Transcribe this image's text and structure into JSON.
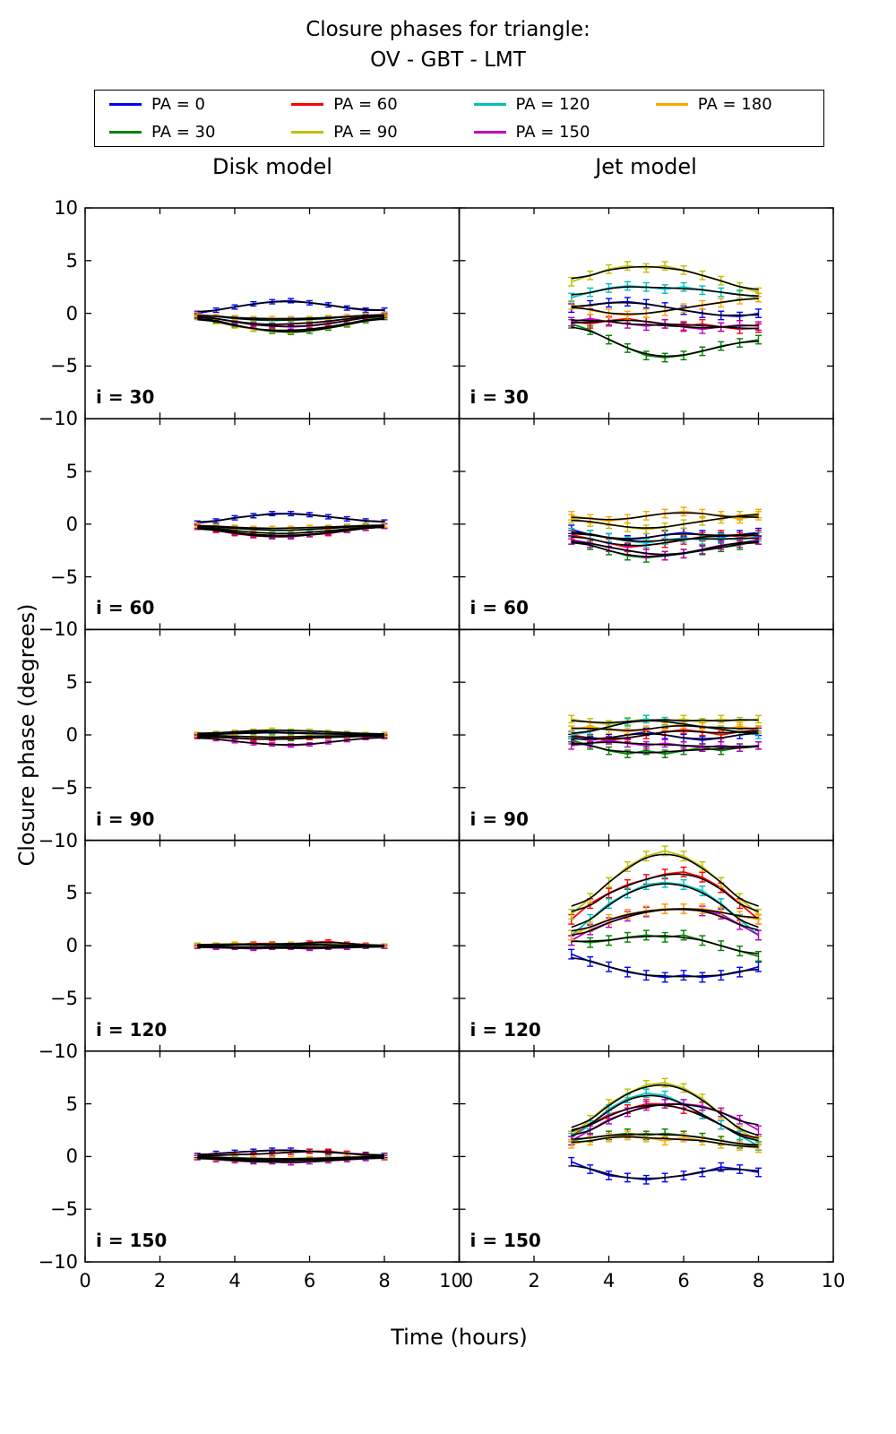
{
  "title": {
    "line1": "Closure phases for triangle:",
    "line2": "OV - GBT - LMT"
  },
  "axis": {
    "xlabel": "Time (hours)",
    "ylabel": "Closure phase (degrees)"
  },
  "chart_data": {
    "type": "line",
    "columns": [
      "Disk model",
      "Jet model"
    ],
    "legend": [
      {
        "label": "PA = 0",
        "color": "#0000ff"
      },
      {
        "label": "PA = 30",
        "color": "#008000"
      },
      {
        "label": "PA = 60",
        "color": "#ff0000"
      },
      {
        "label": "PA = 90",
        "color": "#bfbf00"
      },
      {
        "label": "PA = 120",
        "color": "#00bfbf"
      },
      {
        "label": "PA = 150",
        "color": "#bf00bf"
      },
      {
        "label": "PA = 180",
        "color": "#ffa500"
      }
    ],
    "x": [
      3,
      3.5,
      4,
      4.5,
      5,
      5.5,
      6,
      6.5,
      7,
      7.5,
      8
    ],
    "xlim": [
      0,
      10
    ],
    "ylim": [
      -10,
      10
    ],
    "xticks": [
      0,
      2,
      4,
      6,
      8,
      10
    ],
    "yticks": [
      -10,
      -5,
      0,
      5,
      10
    ],
    "rows": [
      {
        "label": "i = 30",
        "err": {
          "disk": 0.2,
          "jet": 0.4
        },
        "disk": {
          "PA = 0": [
            0.0,
            0.3,
            0.6,
            0.9,
            1.1,
            1.2,
            1.0,
            0.8,
            0.5,
            0.3,
            0.3
          ],
          "PA = 30": [
            -0.3,
            -0.7,
            -1.1,
            -1.5,
            -1.7,
            -1.8,
            -1.7,
            -1.4,
            -1.1,
            -0.7,
            -0.4
          ],
          "PA = 60": [
            -0.2,
            -0.5,
            -0.8,
            -1.0,
            -1.1,
            -1.0,
            -0.9,
            -0.8,
            -0.5,
            -0.3,
            -0.2
          ],
          "PA = 90": [
            -0.4,
            -0.8,
            -1.2,
            -1.5,
            -1.6,
            -1.7,
            -1.5,
            -1.3,
            -1.0,
            -0.6,
            -0.3
          ],
          "PA = 120": [
            -0.1,
            -0.3,
            -0.5,
            -0.6,
            -0.7,
            -0.6,
            -0.6,
            -0.5,
            -0.3,
            -0.2,
            -0.1
          ],
          "PA = 150": [
            -0.2,
            -0.5,
            -0.8,
            -1.1,
            -1.2,
            -1.3,
            -1.2,
            -1.0,
            -0.7,
            -0.4,
            -0.2
          ],
          "PA = 180": [
            -0.1,
            -0.3,
            -0.4,
            -0.5,
            -0.5,
            -0.5,
            -0.5,
            -0.4,
            -0.3,
            -0.2,
            -0.1
          ]
        },
        "jet": {
          "PA = 0": [
            0.5,
            0.8,
            1.0,
            1.1,
            0.9,
            0.6,
            0.3,
            0.0,
            -0.2,
            -0.3,
            0.0
          ],
          "PA = 30": [
            -1.0,
            -1.6,
            -2.5,
            -3.3,
            -4.0,
            -4.2,
            -4.0,
            -3.6,
            -3.1,
            -2.8,
            -2.5
          ],
          "PA = 60": [
            -0.8,
            -1.0,
            -0.7,
            -0.5,
            -0.8,
            -1.0,
            -1.2,
            -1.0,
            -1.3,
            -1.5,
            -1.4
          ],
          "PA = 90": [
            3.0,
            3.6,
            4.2,
            4.5,
            4.3,
            4.5,
            4.1,
            3.6,
            3.1,
            2.5,
            2.0
          ],
          "PA = 120": [
            1.5,
            2.0,
            2.4,
            2.6,
            2.5,
            2.3,
            2.5,
            2.2,
            2.0,
            1.8,
            1.5
          ],
          "PA = 150": [
            -0.8,
            -0.5,
            -0.8,
            -1.0,
            -1.2,
            -1.0,
            -1.3,
            -1.5,
            -1.3,
            -1.1,
            -1.2
          ],
          "PA = 180": [
            0.8,
            0.3,
            0.0,
            -0.2,
            0.0,
            0.2,
            0.5,
            0.8,
            1.0,
            1.3,
            1.5
          ]
        }
      },
      {
        "label": "i = 60",
        "err": {
          "disk": 0.2,
          "jet": 0.4
        },
        "disk": {
          "PA = 0": [
            0.1,
            0.3,
            0.6,
            0.8,
            1.0,
            1.0,
            0.9,
            0.7,
            0.5,
            0.3,
            0.2
          ],
          "PA = 30": [
            -0.2,
            -0.5,
            -0.8,
            -1.0,
            -1.1,
            -1.1,
            -1.0,
            -0.8,
            -0.6,
            -0.4,
            -0.2
          ],
          "PA = 60": [
            -0.3,
            -0.6,
            -0.9,
            -1.1,
            -1.2,
            -1.2,
            -1.0,
            -0.9,
            -0.6,
            -0.4,
            -0.2
          ],
          "PA = 90": [
            -0.2,
            -0.4,
            -0.6,
            -0.8,
            -0.9,
            -0.9,
            -0.8,
            -0.6,
            -0.5,
            -0.3,
            -0.2
          ],
          "PA = 120": [
            -0.1,
            -0.3,
            -0.4,
            -0.5,
            -0.6,
            -0.6,
            -0.5,
            -0.4,
            -0.3,
            -0.2,
            -0.1
          ],
          "PA = 150": [
            -0.2,
            -0.5,
            -0.8,
            -1.0,
            -1.2,
            -1.2,
            -1.0,
            -0.8,
            -0.6,
            -0.4,
            -0.2
          ],
          "PA = 180": [
            -0.1,
            -0.2,
            -0.3,
            -0.4,
            -0.4,
            -0.4,
            -0.3,
            -0.3,
            -0.2,
            -0.1,
            -0.1
          ]
        },
        "jet": {
          "PA = 0": [
            -0.5,
            -1.0,
            -1.3,
            -1.5,
            -1.3,
            -1.0,
            -0.8,
            -1.0,
            -1.2,
            -1.0,
            -0.8
          ],
          "PA = 30": [
            -1.5,
            -2.0,
            -2.5,
            -3.0,
            -3.2,
            -3.0,
            -2.8,
            -2.5,
            -2.2,
            -2.0,
            -1.5
          ],
          "PA = 60": [
            -1.0,
            -1.4,
            -1.8,
            -2.2,
            -2.0,
            -1.8,
            -1.5,
            -1.2,
            -1.0,
            -1.2,
            -1.0
          ],
          "PA = 90": [
            0.5,
            0.2,
            0.0,
            -0.3,
            -0.5,
            -0.3,
            0.0,
            0.3,
            0.5,
            0.8,
            1.0
          ],
          "PA = 120": [
            -0.8,
            -1.0,
            -1.3,
            -1.6,
            -1.8,
            -1.5,
            -1.3,
            -1.5,
            -1.3,
            -1.5,
            -1.2
          ],
          "PA = 150": [
            -1.5,
            -1.8,
            -2.2,
            -2.5,
            -2.8,
            -3.0,
            -2.8,
            -2.4,
            -2.0,
            -1.8,
            -1.5
          ],
          "PA = 180": [
            0.8,
            0.5,
            0.3,
            0.5,
            0.8,
            1.0,
            1.2,
            1.0,
            0.8,
            0.5,
            0.8
          ]
        }
      },
      {
        "label": "i = 90",
        "err": {
          "disk": 0.15,
          "jet": 0.35
        },
        "disk": {
          "PA = 0": [
            0.0,
            0.1,
            0.2,
            0.3,
            0.3,
            0.2,
            0.2,
            0.1,
            0.1,
            0.0,
            0.0
          ],
          "PA = 30": [
            -0.1,
            -0.2,
            -0.3,
            -0.4,
            -0.4,
            -0.4,
            -0.3,
            -0.2,
            -0.2,
            -0.1,
            -0.1
          ],
          "PA = 60": [
            -0.1,
            -0.2,
            -0.3,
            -0.4,
            -0.4,
            -0.3,
            -0.3,
            -0.2,
            -0.1,
            -0.1,
            0.0
          ],
          "PA = 90": [
            0.1,
            0.2,
            0.3,
            0.4,
            0.5,
            0.4,
            0.4,
            0.3,
            0.2,
            0.1,
            0.1
          ],
          "PA = 120": [
            0.0,
            0.1,
            0.1,
            0.2,
            0.2,
            0.2,
            0.1,
            0.1,
            0.1,
            0.0,
            0.0
          ],
          "PA = 150": [
            -0.2,
            -0.4,
            -0.6,
            -0.8,
            -0.9,
            -1.0,
            -0.9,
            -0.7,
            -0.5,
            -0.3,
            -0.2
          ],
          "PA = 180": [
            0.0,
            -0.1,
            -0.1,
            -0.2,
            -0.2,
            -0.2,
            -0.1,
            -0.1,
            -0.1,
            0.0,
            0.0
          ]
        },
        "jet": {
          "PA = 0": [
            -0.3,
            -0.5,
            -0.3,
            0.0,
            0.3,
            0.0,
            -0.3,
            -0.5,
            -0.3,
            0.0,
            0.3
          ],
          "PA = 30": [
            -0.5,
            -1.0,
            -1.5,
            -1.8,
            -1.5,
            -1.8,
            -1.5,
            -1.2,
            -1.5,
            -1.2,
            -1.0
          ],
          "PA = 60": [
            0.0,
            -0.3,
            -0.5,
            -0.3,
            0.0,
            0.3,
            0.5,
            0.3,
            0.0,
            0.3,
            0.5
          ],
          "PA = 90": [
            1.5,
            1.2,
            1.0,
            1.3,
            1.5,
            1.3,
            1.5,
            1.2,
            1.5,
            1.3,
            1.5
          ],
          "PA = 120": [
            0.0,
            0.3,
            0.8,
            1.2,
            1.5,
            1.3,
            1.0,
            0.8,
            0.5,
            0.3,
            0.0
          ],
          "PA = 150": [
            -1.0,
            -0.8,
            -0.5,
            -0.8,
            -1.0,
            -0.8,
            -1.0,
            -1.2,
            -1.0,
            -1.2,
            -1.0
          ],
          "PA = 180": [
            0.5,
            0.8,
            0.5,
            0.3,
            0.5,
            0.8,
            1.0,
            0.8,
            0.5,
            0.8,
            0.5
          ]
        }
      },
      {
        "label": "i = 120",
        "err": {
          "disk": 0.15,
          "jet": 0.45
        },
        "disk": {
          "PA = 0": [
            0.0,
            0.1,
            0.1,
            0.1,
            0.0,
            0.0,
            0.1,
            0.1,
            0.0,
            0.0,
            0.0
          ],
          "PA = 30": [
            -0.1,
            -0.1,
            -0.2,
            -0.2,
            -0.2,
            -0.1,
            -0.1,
            -0.2,
            -0.1,
            -0.1,
            0.0
          ],
          "PA = 60": [
            0.0,
            0.1,
            0.1,
            0.2,
            0.2,
            0.1,
            0.3,
            0.4,
            0.2,
            0.1,
            0.0
          ],
          "PA = 90": [
            0.1,
            0.1,
            0.2,
            0.1,
            0.1,
            0.2,
            0.1,
            0.1,
            0.1,
            0.0,
            0.0
          ],
          "PA = 120": [
            0.0,
            -0.1,
            -0.1,
            -0.2,
            -0.1,
            -0.1,
            -0.2,
            -0.1,
            -0.1,
            0.0,
            -0.1
          ],
          "PA = 150": [
            -0.1,
            -0.2,
            -0.2,
            -0.3,
            -0.2,
            -0.2,
            -0.3,
            -0.2,
            -0.2,
            -0.1,
            -0.1
          ],
          "PA = 180": [
            0.0,
            0.0,
            0.1,
            0.1,
            0.0,
            0.1,
            0.0,
            0.1,
            0.0,
            0.0,
            0.0
          ]
        },
        "jet": {
          "PA = 0": [
            -0.8,
            -1.5,
            -2.0,
            -2.5,
            -2.8,
            -3.0,
            -2.8,
            -3.0,
            -2.8,
            -2.5,
            -2.0
          ],
          "PA = 30": [
            0.5,
            0.3,
            0.5,
            0.8,
            1.0,
            0.8,
            1.0,
            0.5,
            0.0,
            -0.5,
            -1.0
          ],
          "PA = 60": [
            2.5,
            4.0,
            5.0,
            5.8,
            6.3,
            6.8,
            7.0,
            6.5,
            5.5,
            4.0,
            2.5
          ],
          "PA = 90": [
            3.0,
            4.5,
            6.0,
            7.5,
            8.5,
            9.0,
            8.5,
            7.5,
            6.0,
            4.5,
            3.0
          ],
          "PA = 120": [
            1.0,
            2.5,
            4.0,
            5.0,
            5.8,
            6.0,
            5.8,
            5.2,
            4.0,
            2.5,
            1.0
          ],
          "PA = 150": [
            0.5,
            1.5,
            2.2,
            2.8,
            3.2,
            3.5,
            3.5,
            3.3,
            3.0,
            2.0,
            1.0
          ],
          "PA = 180": [
            1.0,
            1.8,
            2.5,
            3.0,
            3.3,
            3.5,
            3.5,
            3.5,
            3.2,
            2.8,
            2.5
          ]
        }
      },
      {
        "label": "i = 150",
        "err": {
          "disk": 0.2,
          "jet": 0.4
        },
        "disk": {
          "PA = 0": [
            0.1,
            0.3,
            0.4,
            0.5,
            0.6,
            0.6,
            0.5,
            0.4,
            0.3,
            0.2,
            0.1
          ],
          "PA = 30": [
            -0.1,
            -0.2,
            -0.3,
            -0.4,
            -0.4,
            -0.4,
            -0.3,
            -0.3,
            -0.2,
            -0.1,
            -0.1
          ],
          "PA = 60": [
            0.0,
            0.1,
            0.2,
            0.2,
            0.3,
            0.4,
            0.5,
            0.5,
            0.3,
            0.1,
            0.0
          ],
          "PA = 90": [
            -0.1,
            -0.2,
            -0.3,
            -0.3,
            -0.4,
            -0.4,
            -0.3,
            -0.3,
            -0.2,
            -0.1,
            -0.1
          ],
          "PA = 120": [
            -0.1,
            -0.1,
            -0.2,
            -0.2,
            -0.3,
            -0.2,
            -0.2,
            -0.2,
            -0.1,
            -0.1,
            0.0
          ],
          "PA = 150": [
            -0.1,
            -0.3,
            -0.4,
            -0.5,
            -0.5,
            -0.6,
            -0.5,
            -0.4,
            -0.3,
            -0.2,
            -0.1
          ],
          "PA = 180": [
            0.0,
            -0.1,
            -0.1,
            -0.2,
            -0.2,
            -0.2,
            -0.2,
            -0.1,
            -0.1,
            0.0,
            0.0
          ]
        },
        "jet": {
          "PA = 0": [
            -0.5,
            -1.2,
            -1.8,
            -2.0,
            -2.2,
            -2.0,
            -1.8,
            -1.5,
            -1.0,
            -1.2,
            -1.5
          ],
          "PA = 30": [
            1.5,
            1.8,
            2.0,
            2.2,
            2.0,
            2.2,
            2.0,
            1.8,
            1.5,
            1.2,
            1.0
          ],
          "PA = 60": [
            2.0,
            3.0,
            4.0,
            4.5,
            5.0,
            5.0,
            4.5,
            4.0,
            3.0,
            2.0,
            1.5
          ],
          "PA = 90": [
            2.0,
            3.5,
            5.0,
            6.0,
            6.8,
            7.0,
            6.5,
            5.5,
            4.0,
            2.5,
            1.5
          ],
          "PA = 120": [
            1.8,
            3.0,
            4.5,
            5.5,
            6.0,
            5.8,
            5.0,
            4.0,
            3.0,
            2.0,
            1.0
          ],
          "PA = 150": [
            1.5,
            2.5,
            3.5,
            4.2,
            4.8,
            5.0,
            5.0,
            4.8,
            4.2,
            3.5,
            2.5
          ],
          "PA = 180": [
            1.2,
            1.5,
            1.8,
            2.0,
            1.8,
            1.5,
            1.8,
            1.5,
            1.2,
            1.0,
            0.8
          ]
        }
      }
    ]
  }
}
